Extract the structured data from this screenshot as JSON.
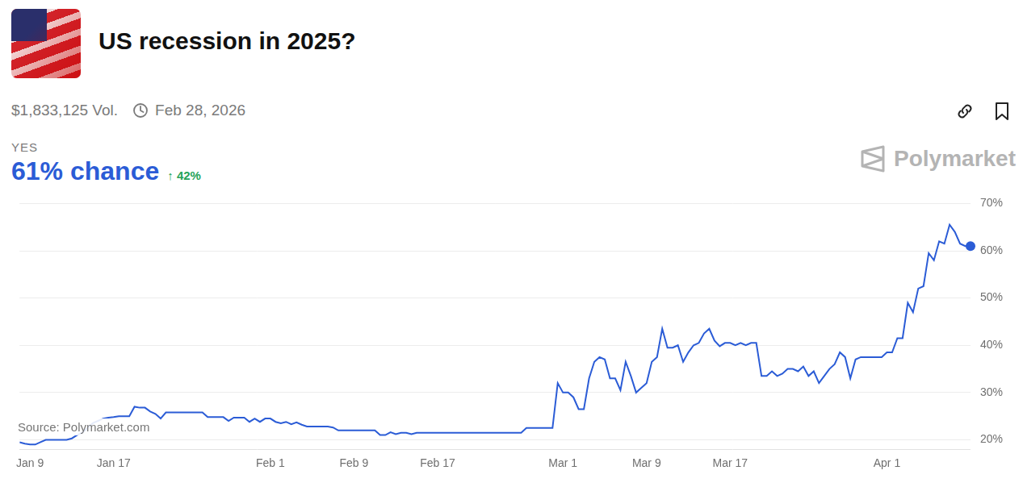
{
  "header": {
    "title": "US recession in 2025?",
    "volume": "$1,833,125 Vol.",
    "end_date": "Feb 28, 2026",
    "outcome": "YES",
    "probability": "61% chance",
    "change": "↑ 42%",
    "brand": "Polymarket",
    "source": "Source: Polymarket.com"
  },
  "chart_data": {
    "type": "line",
    "color": "#2b5cd6",
    "grid": true,
    "categories": [
      null,
      null,
      "Jan 9",
      null,
      null,
      null,
      null,
      null,
      null,
      null,
      null,
      null,
      null,
      null,
      null,
      null,
      null,
      null,
      "Jan 17",
      null,
      null,
      null,
      null,
      null,
      null,
      null,
      null,
      null,
      null,
      null,
      null,
      null,
      null,
      null,
      null,
      null,
      null,
      null,
      null,
      null,
      null,
      null,
      null,
      null,
      null,
      null,
      null,
      null,
      "Feb 1",
      null,
      null,
      null,
      null,
      null,
      null,
      null,
      null,
      null,
      null,
      null,
      null,
      null,
      null,
      null,
      "Feb 9",
      null,
      null,
      null,
      null,
      null,
      null,
      null,
      null,
      null,
      null,
      null,
      null,
      null,
      null,
      null,
      "Feb 17",
      null,
      null,
      null,
      null,
      null,
      null,
      null,
      null,
      null,
      null,
      null,
      null,
      null,
      null,
      null,
      null,
      null,
      null,
      null,
      null,
      null,
      null,
      null,
      "Mar 1",
      null,
      null,
      null,
      null,
      null,
      null,
      null,
      null,
      null,
      null,
      null,
      null,
      null,
      null,
      null,
      "Mar 9",
      null,
      null,
      null,
      null,
      null,
      null,
      null,
      null,
      null,
      null,
      null,
      null,
      null,
      null,
      null,
      "Mar 17",
      null,
      null,
      null,
      null,
      null,
      null,
      null,
      null,
      null,
      null,
      null,
      null,
      null,
      null,
      null,
      null,
      null,
      null,
      null,
      null,
      null,
      null,
      null,
      null,
      null,
      null,
      null,
      null,
      null,
      "Apr 1",
      null,
      null,
      null,
      null,
      null,
      null,
      null,
      null,
      null,
      null,
      null,
      null,
      null,
      null,
      null,
      null
    ],
    "values": [
      19.5,
      19.2,
      19,
      19,
      19.5,
      20,
      20,
      20,
      20,
      20,
      20.3,
      21,
      21.5,
      22.5,
      23.5,
      24,
      24.5,
      24.7,
      24.8,
      25,
      25,
      25,
      27,
      26.8,
      26.8,
      26,
      25.5,
      24.5,
      25.8,
      25.8,
      25.8,
      25.8,
      25.8,
      25.8,
      25.8,
      25.8,
      24.8,
      24.8,
      24.8,
      24.8,
      24.0,
      24.7,
      24.7,
      24.7,
      23.8,
      24.5,
      23.8,
      24.5,
      24.5,
      23.8,
      23.5,
      23.8,
      23.3,
      23.7,
      23.2,
      22.8,
      22.8,
      22.8,
      22.8,
      22.8,
      22.6,
      22,
      22,
      22,
      22,
      22,
      22,
      22,
      22,
      21.0,
      21.0,
      21.6,
      21.2,
      21.5,
      21.5,
      21.2,
      21.5,
      21.5,
      21.5,
      21.5,
      21.5,
      21.5,
      21.5,
      21.5,
      21.5,
      21.5,
      21.5,
      21.5,
      21.5,
      21.5,
      21.5,
      21.5,
      21.5,
      21.5,
      21.5,
      21.5,
      21.5,
      22.5,
      22.5,
      22.5,
      22.5,
      22.5,
      22.5,
      32,
      30,
      30,
      29,
      26.5,
      26.5,
      33,
      36.5,
      37.5,
      37,
      33,
      33,
      30.5,
      36.5,
      33.5,
      30,
      31,
      32,
      36.5,
      37.5,
      43.5,
      39.5,
      39.5,
      40,
      36.5,
      38.5,
      40,
      40.5,
      42.5,
      43.5,
      41,
      39.8,
      40.5,
      40.5,
      40,
      40.5,
      40,
      40.5,
      40.5,
      33.5,
      33.5,
      34.5,
      33.5,
      34,
      35,
      35,
      34.5,
      35.5,
      33.5,
      34.5,
      32,
      33.5,
      35,
      36,
      38.5,
      37.5,
      33,
      37,
      37.5,
      37.5,
      37.5,
      37.5,
      37.5,
      38.5,
      38.5,
      41.5,
      41.5,
      49,
      47,
      52,
      52.5,
      59.5,
      58,
      62,
      61.5,
      65.5,
      64,
      61.5,
      61,
      61
    ],
    "ylim": [
      18,
      70
    ],
    "yticks": [
      {
        "value": 20,
        "label": "20%"
      },
      {
        "value": 30,
        "label": "30%"
      },
      {
        "value": 40,
        "label": "40%"
      },
      {
        "value": 50,
        "label": "50%"
      },
      {
        "value": 60,
        "label": "60%"
      },
      {
        "value": 70,
        "label": "70%"
      }
    ]
  }
}
